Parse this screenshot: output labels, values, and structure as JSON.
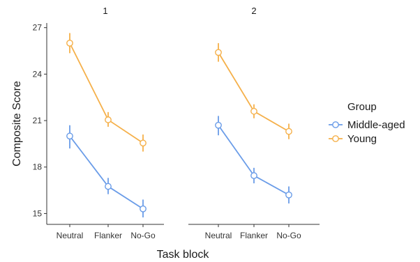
{
  "chart_data": {
    "type": "line",
    "facets": [
      "1",
      "2"
    ],
    "categories": [
      "Neutral",
      "Flanker",
      "No-Go"
    ],
    "xlabel": "Task block",
    "ylabel": "Composite Score",
    "ylim": [
      14.3,
      27.3
    ],
    "yticks": [
      15,
      18,
      21,
      24,
      27
    ],
    "grid": false,
    "legend": {
      "title": "Group",
      "placement": "right",
      "entries": [
        "Middle-aged",
        "Young"
      ]
    },
    "series": [
      {
        "name": "Middle-aged",
        "color": "#6a9ce8",
        "panels": [
          {
            "facet": "1",
            "values": [
              20.0,
              16.75,
              15.3
            ],
            "lower": [
              19.2,
              16.25,
              14.75
            ],
            "upper": [
              20.7,
              17.3,
              15.9
            ]
          },
          {
            "facet": "2",
            "values": [
              20.7,
              17.45,
              16.2
            ],
            "lower": [
              20.05,
              16.95,
              15.65
            ],
            "upper": [
              21.3,
              17.95,
              16.75
            ]
          }
        ]
      },
      {
        "name": "Young",
        "color": "#f5b04a",
        "panels": [
          {
            "facet": "1",
            "values": [
              26.0,
              21.05,
              19.55
            ],
            "lower": [
              25.35,
              20.6,
              19.0
            ],
            "upper": [
              26.65,
              21.55,
              20.1
            ]
          },
          {
            "facet": "2",
            "values": [
              25.4,
              21.6,
              20.3
            ],
            "lower": [
              24.8,
              21.15,
              19.8
            ],
            "upper": [
              26.0,
              22.05,
              20.8
            ]
          }
        ]
      }
    ]
  }
}
